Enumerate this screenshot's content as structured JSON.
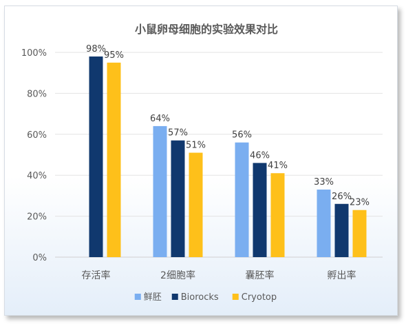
{
  "chart_data": {
    "type": "bar",
    "title": "小鼠卵母细胞的实验效果对比",
    "categories": [
      "存活率",
      "2细胞率",
      "囊胚率",
      "孵出率"
    ],
    "series": [
      {
        "name": "鲜胚",
        "color": "#7aaef0",
        "values": [
          null,
          64,
          56,
          33
        ]
      },
      {
        "name": "Biorocks",
        "color": "#10386e",
        "values": [
          98,
          57,
          46,
          26
        ]
      },
      {
        "name": "Cryotop",
        "color": "#fec01a",
        "values": [
          95,
          51,
          41,
          23
        ]
      }
    ],
    "ylim": [
      0,
      100
    ],
    "yticks": [
      "0%",
      "20%",
      "40%",
      "60%",
      "80%",
      "100%"
    ],
    "legend_position": "bottom",
    "grid": true
  }
}
